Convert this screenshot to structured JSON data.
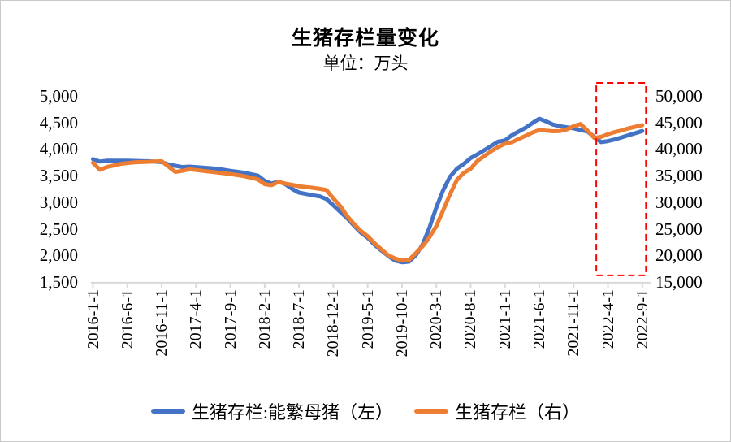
{
  "title": "生猪存栏量变化",
  "subtitle": "单位：万头",
  "legend": [
    {
      "label": "生猪存栏:能繁母猪（左）",
      "color": "#4472C4"
    },
    {
      "label": "生猪存栏（右）",
      "color": "#ED7D31"
    }
  ],
  "colors": {
    "sows_line": "#4472C4",
    "pigs_line": "#ED7D31",
    "axis": "#d9d9d9",
    "highlight_box": "#FF0000"
  },
  "chart_data": {
    "type": "line",
    "title": "生猪存栏量变化",
    "subtitle": "单位：万头",
    "grid": false,
    "legend_position": "bottom",
    "x_start_month": "2016-1",
    "x_tick_labels": [
      "2016-1-1",
      "2016-6-1",
      "2016-11-1",
      "2017-4-1",
      "2017-9-1",
      "2018-2-1",
      "2018-7-1",
      "2018-12-1",
      "2019-5-1",
      "2019-10-1",
      "2020-3-1",
      "2020-8-1",
      "2021-1-1",
      "2021-6-1",
      "2021-11-1",
      "2022-4-1",
      "2022-9-1"
    ],
    "months_per_x_tick": 5,
    "left_axis": {
      "tick_labels": [
        "5,000",
        "4,500",
        "4,000",
        "3,500",
        "3,000",
        "2,500",
        "2,000",
        "1,500"
      ],
      "min": 1500,
      "max": 5000,
      "step": 500
    },
    "right_axis": {
      "tick_labels": [
        "50,000",
        "45,000",
        "40,000",
        "35,000",
        "30,000",
        "25,000",
        "20,000",
        "15,000"
      ],
      "min": 15000,
      "max": 50000,
      "step": 5000
    },
    "series": [
      {
        "name": "生猪存栏:能繁母猪（左）",
        "axis": "left",
        "color": "#4472C4",
        "values": [
          3810,
          3765,
          3780,
          3780,
          3780,
          3780,
          3777,
          3773,
          3770,
          3763,
          3755,
          3710,
          3685,
          3660,
          3670,
          3660,
          3650,
          3640,
          3630,
          3610,
          3590,
          3573,
          3555,
          3528,
          3500,
          3400,
          3350,
          3390,
          3340,
          3250,
          3180,
          3155,
          3130,
          3110,
          3060,
          2940,
          2820,
          2700,
          2560,
          2430,
          2330,
          2200,
          2090,
          1990,
          1900,
          1870,
          1880,
          2000,
          2200,
          2520,
          2900,
          3230,
          3480,
          3630,
          3720,
          3830,
          3900,
          3980,
          4060,
          4140,
          4160,
          4260,
          4330,
          4400,
          4490,
          4570,
          4520,
          4460,
          4430,
          4410,
          4390,
          4360,
          4330,
          4230,
          4130,
          4150,
          4180,
          4220,
          4260,
          4300,
          4340
        ]
      },
      {
        "name": "生猪存栏（右）",
        "axis": "right",
        "color": "#ED7D31",
        "values": [
          37400,
          36100,
          36600,
          36900,
          37200,
          37350,
          37500,
          37550,
          37600,
          37650,
          37700,
          36700,
          35700,
          35900,
          36200,
          36050,
          35900,
          35750,
          35600,
          35450,
          35300,
          35100,
          34900,
          34600,
          34300,
          33400,
          33200,
          33800,
          33500,
          33250,
          33000,
          32850,
          32700,
          32500,
          32300,
          30700,
          29300,
          27400,
          25900,
          24600,
          23600,
          22300,
          21100,
          20000,
          19400,
          19000,
          19100,
          20400,
          21700,
          23400,
          25500,
          28500,
          31500,
          34200,
          35500,
          36300,
          37800,
          38700,
          39600,
          40400,
          41000,
          41300,
          41900,
          42500,
          43100,
          43600,
          43450,
          43350,
          43400,
          43700,
          44300,
          44700,
          43500,
          42100,
          42300,
          42800,
          43200,
          43500,
          43900,
          44200,
          44500
        ]
      }
    ],
    "annotation": {
      "type": "dashed-box",
      "color": "#FF0000",
      "from_index": 73,
      "to_index": 80,
      "from_label": "2022-2-1",
      "to_label": "2022-9-1"
    }
  }
}
